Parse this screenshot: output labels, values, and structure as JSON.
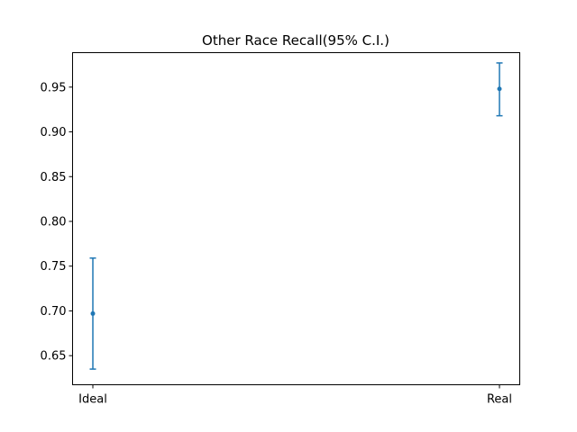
{
  "chart_data": {
    "type": "scatter",
    "title": "Other Race Recall(95% C.I.)",
    "xlabel": "",
    "ylabel": "",
    "categories": [
      "Ideal",
      "Real"
    ],
    "series": [
      {
        "values": [
          0.697,
          0.948
        ],
        "ci_lower": [
          0.635,
          0.918
        ],
        "ci_upper": [
          0.759,
          0.977
        ]
      }
    ],
    "ylim": [
      0.6175,
      0.9885
    ],
    "y_ticks": [
      0.65,
      0.7,
      0.75,
      0.8,
      0.85,
      0.9,
      0.95
    ],
    "y_tick_labels": [
      "0.65",
      "0.70",
      "0.75",
      "0.80",
      "0.85",
      "0.90",
      "0.95"
    ],
    "grid": false,
    "color": "#1f77b4"
  }
}
